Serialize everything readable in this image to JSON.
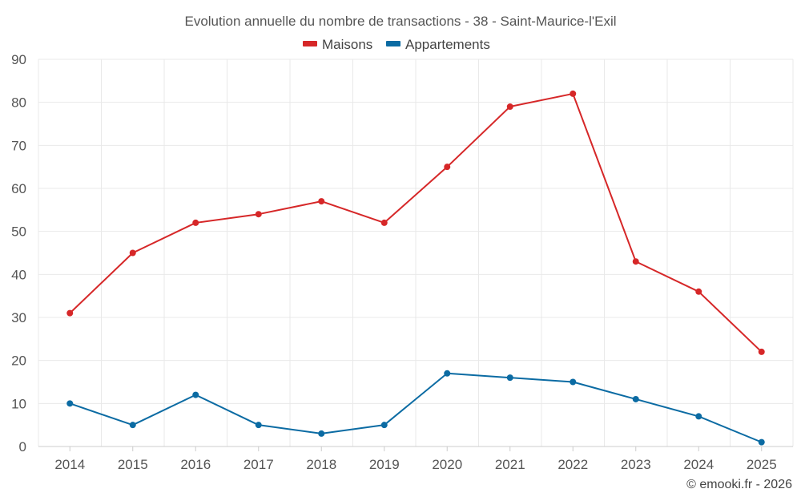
{
  "chart_data": {
    "type": "line",
    "title": "Evolution annuelle du nombre de transactions - 38 - Saint-Maurice-l'Exil",
    "categories": [
      "2014",
      "2015",
      "2016",
      "2017",
      "2018",
      "2019",
      "2020",
      "2021",
      "2022",
      "2023",
      "2024",
      "2025"
    ],
    "series": [
      {
        "name": "Maisons",
        "color": "#d62728",
        "values": [
          31,
          45,
          52,
          54,
          57,
          52,
          65,
          79,
          82,
          43,
          36,
          22
        ]
      },
      {
        "name": "Appartements",
        "color": "#0b6ba3",
        "values": [
          10,
          5,
          12,
          5,
          3,
          5,
          17,
          16,
          15,
          11,
          7,
          1
        ]
      }
    ],
    "yticks": [
      0,
      10,
      20,
      30,
      40,
      50,
      60,
      70,
      80,
      90
    ],
    "ylim": [
      0,
      90
    ],
    "xlabel": "",
    "ylabel": "",
    "legend_position": "top-center",
    "grid": true
  },
  "credit": "© emooki.fr - 2026"
}
